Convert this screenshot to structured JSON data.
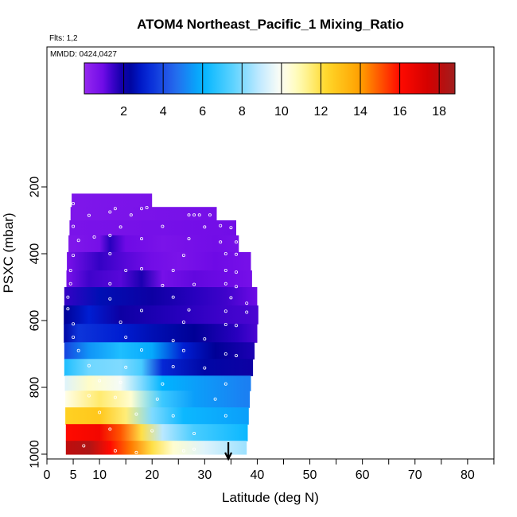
{
  "chart_data": {
    "type": "heatmap",
    "title": "ATOM4 Northeast_Pacific_1 Mixing_Ratio",
    "flights_label": "Flts: 1,2",
    "dates_label": "MMDD: 0424,0427",
    "xlabel": "Latitude (deg N)",
    "ylabel": "PSXC (mbar)",
    "xlim": [
      0,
      85
    ],
    "ylim": [
      1000,
      0
    ],
    "x_ticks": [
      "0",
      "5",
      "10",
      "20",
      "30",
      "40",
      "50",
      "60",
      "70",
      "80"
    ],
    "y_ticks": [
      "200",
      "400",
      "600",
      "800",
      "1000"
    ],
    "colorbar": {
      "range": [
        0,
        18.8
      ],
      "tick_labels": [
        "2",
        "4",
        "6",
        "8",
        "10",
        "12",
        "14",
        "16",
        "18"
      ]
    },
    "marker_latitude": 34.5,
    "profile_bands": [
      {
        "p_top": 220,
        "p_bot": 260,
        "lat_min": 4.7,
        "lat_max": 20.0,
        "values": [
          [
            5,
            0.6
          ],
          [
            20,
            0.7
          ]
        ]
      },
      {
        "p_top": 260,
        "p_bot": 300,
        "lat_min": 4.5,
        "lat_max": 32.3,
        "values": [
          [
            5,
            0.6
          ],
          [
            32,
            0.8
          ]
        ]
      },
      {
        "p_top": 300,
        "p_bot": 345,
        "lat_min": 4.3,
        "lat_max": 36.0,
        "values": [
          [
            5,
            0.7
          ],
          [
            36,
            0.9
          ]
        ]
      },
      {
        "p_top": 345,
        "p_bot": 395,
        "lat_min": 4.1,
        "lat_max": 36.5,
        "values": [
          [
            5,
            0.6
          ],
          [
            10,
            0.8
          ],
          [
            12,
            1.6
          ],
          [
            15,
            1.0
          ],
          [
            22,
            0.7
          ],
          [
            32,
            0.9
          ],
          [
            36,
            0.8
          ]
        ]
      },
      {
        "p_top": 395,
        "p_bot": 450,
        "lat_min": 3.8,
        "lat_max": 38.8,
        "values": [
          [
            4,
            0.8
          ],
          [
            10,
            1.5
          ],
          [
            15,
            1.2
          ],
          [
            20,
            0.9
          ],
          [
            25,
            0.7
          ],
          [
            32,
            1.0
          ],
          [
            38,
            0.8
          ]
        ]
      },
      {
        "p_top": 450,
        "p_bot": 500,
        "lat_min": 3.7,
        "lat_max": 39.0,
        "values": [
          [
            4,
            0.8
          ],
          [
            8,
            1.4
          ],
          [
            14,
            1.2
          ],
          [
            18,
            1.8
          ],
          [
            22,
            0.8
          ],
          [
            28,
            1.1
          ],
          [
            35,
            1.0
          ],
          [
            39,
            0.8
          ]
        ]
      },
      {
        "p_top": 500,
        "p_bot": 555,
        "lat_min": 3.3,
        "lat_max": 40.0,
        "values": [
          [
            3,
            1.5
          ],
          [
            10,
            2.6
          ],
          [
            20,
            2.0
          ],
          [
            28,
            1.6
          ],
          [
            34,
            1.4
          ],
          [
            40,
            1.0
          ]
        ]
      },
      {
        "p_top": 555,
        "p_bot": 610,
        "lat_min": 3.2,
        "lat_max": 40.2,
        "values": [
          [
            3,
            2.2
          ],
          [
            8,
            3.0
          ],
          [
            14,
            2.0
          ],
          [
            20,
            1.8
          ],
          [
            26,
            1.6
          ],
          [
            34,
            1.4
          ],
          [
            40,
            1.3
          ]
        ]
      },
      {
        "p_top": 610,
        "p_bot": 665,
        "lat_min": 3.2,
        "lat_max": 40.0,
        "values": [
          [
            3,
            2.4
          ],
          [
            6,
            3.5
          ],
          [
            14,
            3.0
          ],
          [
            20,
            2.6
          ],
          [
            28,
            2.2
          ],
          [
            36,
            1.6
          ],
          [
            40,
            1.3
          ]
        ]
      },
      {
        "p_top": 665,
        "p_bot": 715,
        "lat_min": 3.3,
        "lat_max": 39.5,
        "values": [
          [
            3,
            3.8
          ],
          [
            8,
            5.4
          ],
          [
            14,
            6.5
          ],
          [
            20,
            5.8
          ],
          [
            26,
            3.0
          ],
          [
            32,
            2.2
          ],
          [
            39,
            1.8
          ]
        ]
      },
      {
        "p_top": 715,
        "p_bot": 765,
        "lat_min": 3.3,
        "lat_max": 39.2,
        "values": [
          [
            3,
            6.5
          ],
          [
            8,
            7.8
          ],
          [
            14,
            8.0
          ],
          [
            18,
            7.2
          ],
          [
            22,
            3.2
          ],
          [
            30,
            2.4
          ],
          [
            39,
            2.0
          ]
        ]
      },
      {
        "p_top": 765,
        "p_bot": 810,
        "lat_min": 3.4,
        "lat_max": 38.8,
        "values": [
          [
            3,
            9.4
          ],
          [
            8,
            10.6
          ],
          [
            14,
            9.8
          ],
          [
            18,
            8.0
          ],
          [
            22,
            6.0
          ],
          [
            28,
            5.6
          ],
          [
            38,
            5.0
          ]
        ]
      },
      {
        "p_top": 810,
        "p_bot": 860,
        "lat_min": 3.5,
        "lat_max": 38.6,
        "values": [
          [
            3,
            10.2
          ],
          [
            10,
            11.6
          ],
          [
            16,
            10.5
          ],
          [
            22,
            7.0
          ],
          [
            28,
            5.6
          ],
          [
            38,
            5.0
          ]
        ]
      },
      {
        "p_top": 860,
        "p_bot": 910,
        "lat_min": 3.5,
        "lat_max": 38.4,
        "values": [
          [
            3,
            12.5
          ],
          [
            10,
            12.8
          ],
          [
            15,
            11.5
          ],
          [
            20,
            8.0
          ],
          [
            26,
            6.2
          ],
          [
            38,
            5.6
          ]
        ]
      },
      {
        "p_top": 910,
        "p_bot": 960,
        "lat_min": 3.6,
        "lat_max": 38.2,
        "values": [
          [
            3,
            16.0
          ],
          [
            10,
            16.4
          ],
          [
            14,
            15.0
          ],
          [
            18,
            12.0
          ],
          [
            22,
            8.8
          ],
          [
            28,
            7.2
          ],
          [
            38,
            6.2
          ]
        ]
      },
      {
        "p_top": 960,
        "p_bot": 1000,
        "lat_min": 3.6,
        "lat_max": 38.0,
        "values": [
          [
            3,
            18.0
          ],
          [
            8,
            18.4
          ],
          [
            12,
            16.0
          ],
          [
            16,
            14.5
          ],
          [
            20,
            12.0
          ],
          [
            24,
            10.5
          ],
          [
            30,
            9.4
          ],
          [
            38,
            8.4
          ]
        ]
      }
    ],
    "samples": [
      [
        5,
        250
      ],
      [
        12,
        275
      ],
      [
        13,
        265
      ],
      [
        18,
        265
      ],
      [
        19,
        262
      ],
      [
        8,
        285
      ],
      [
        16,
        284
      ],
      [
        27,
        284
      ],
      [
        28,
        284
      ],
      [
        29,
        284
      ],
      [
        31,
        284
      ],
      [
        5,
        318
      ],
      [
        14,
        320
      ],
      [
        22,
        318
      ],
      [
        30,
        320
      ],
      [
        33,
        316
      ],
      [
        35,
        322
      ],
      [
        6,
        360
      ],
      [
        9,
        350
      ],
      [
        12,
        345
      ],
      [
        18,
        355
      ],
      [
        27,
        355
      ],
      [
        33,
        365
      ],
      [
        36,
        365
      ],
      [
        5,
        405
      ],
      [
        12,
        400
      ],
      [
        26,
        405
      ],
      [
        34,
        400
      ],
      [
        36,
        402
      ],
      [
        4.5,
        450
      ],
      [
        15,
        450
      ],
      [
        18,
        445
      ],
      [
        24,
        450
      ],
      [
        34,
        450
      ],
      [
        36,
        455
      ],
      [
        4.5,
        490
      ],
      [
        12,
        490
      ],
      [
        22,
        495
      ],
      [
        28,
        492
      ],
      [
        34,
        490
      ],
      [
        36,
        498
      ],
      [
        4,
        530
      ],
      [
        12,
        535
      ],
      [
        24,
        530
      ],
      [
        35,
        532
      ],
      [
        38,
        548
      ],
      [
        4,
        565
      ],
      [
        18,
        570
      ],
      [
        27,
        568
      ],
      [
        34,
        572
      ],
      [
        38,
        575
      ],
      [
        5,
        610
      ],
      [
        14,
        605
      ],
      [
        26,
        605
      ],
      [
        34,
        612
      ],
      [
        36,
        615
      ],
      [
        5,
        650
      ],
      [
        15,
        650
      ],
      [
        24,
        660
      ],
      [
        30,
        655
      ],
      [
        6,
        690
      ],
      [
        18,
        688
      ],
      [
        26,
        690
      ],
      [
        34,
        700
      ],
      [
        36,
        705
      ],
      [
        8,
        735
      ],
      [
        15,
        740
      ],
      [
        24,
        738
      ],
      [
        30,
        742
      ],
      [
        10,
        780
      ],
      [
        14,
        785
      ],
      [
        22,
        790
      ],
      [
        34,
        790
      ],
      [
        8,
        825
      ],
      [
        13,
        830
      ],
      [
        21,
        835
      ],
      [
        32,
        835
      ],
      [
        10,
        875
      ],
      [
        17,
        880
      ],
      [
        24,
        885
      ],
      [
        34,
        885
      ],
      [
        12,
        925
      ],
      [
        20,
        930
      ],
      [
        28,
        938
      ],
      [
        7,
        975
      ],
      [
        13,
        990
      ],
      [
        17,
        995
      ],
      [
        26,
        990
      ],
      [
        28,
        985
      ]
    ]
  }
}
